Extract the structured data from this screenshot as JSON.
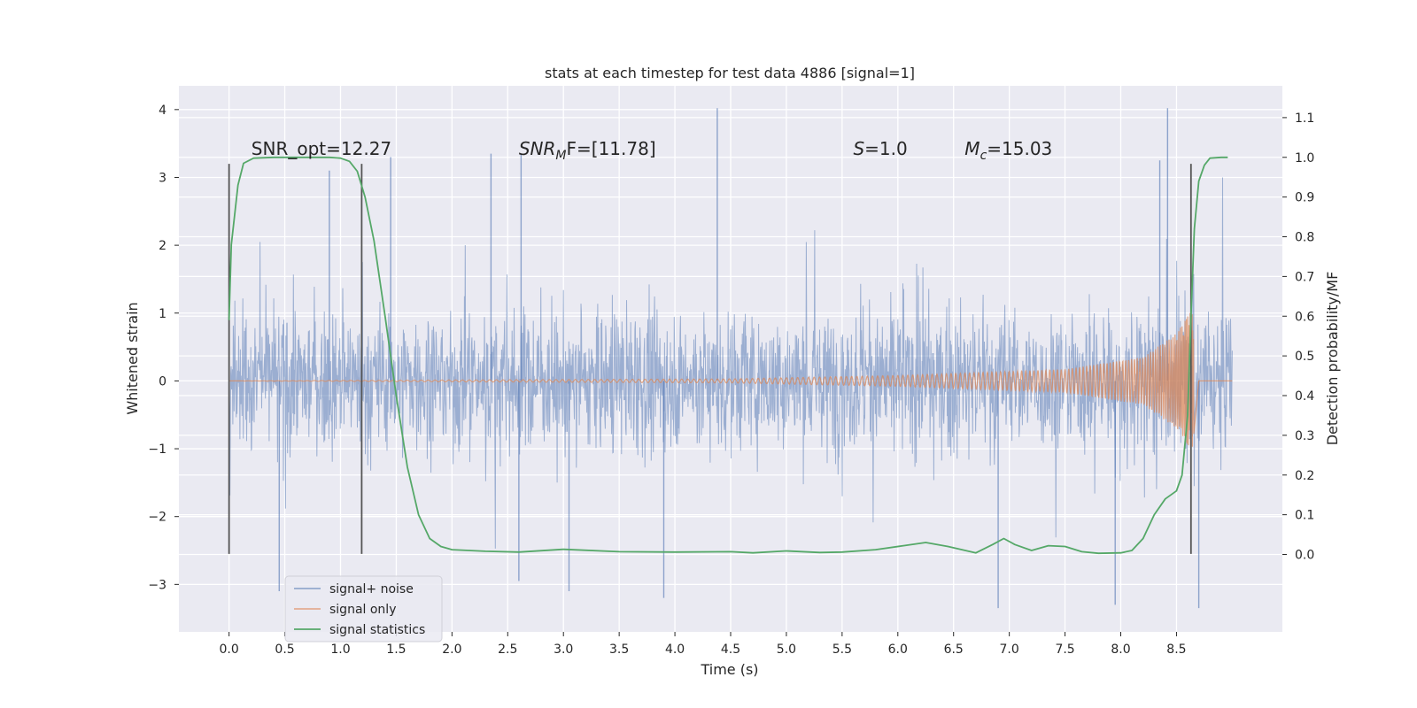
{
  "chart_data": {
    "type": "line",
    "title": "stats at each timestep for test data 4886 [signal=1]",
    "xlabel": "Time (s)",
    "ylabel_left": "Whitened strain",
    "ylabel_right": "Detection probability/MF",
    "xlim": [
      -0.45,
      9.45
    ],
    "ylim_left": [
      -3.7,
      4.35
    ],
    "ylim_right": [
      -0.195,
      1.18
    ],
    "x_ticks": [
      "0.0",
      "0.5",
      "1.0",
      "1.5",
      "2.0",
      "2.5",
      "3.0",
      "3.5",
      "4.0",
      "4.5",
      "5.0",
      "5.5",
      "6.0",
      "6.5",
      "7.0",
      "7.5",
      "8.0",
      "8.5"
    ],
    "y_ticks_left": [
      "−3",
      "−2",
      "−1",
      "0",
      "1",
      "2",
      "3",
      "4"
    ],
    "y_ticks_right": [
      "0.0",
      "0.1",
      "0.2",
      "0.3",
      "0.4",
      "0.5",
      "0.6",
      "0.7",
      "0.8",
      "0.9",
      "1.0",
      "1.1"
    ],
    "grid": true,
    "background": "#eaeaf2",
    "legend_position": "lower-left",
    "series": [
      {
        "name": "signal+ noise",
        "axis": "left",
        "color": "#4c72b0",
        "x_range": [
          0.0,
          9.0
        ],
        "typical_range": [
          -1.5,
          1.5
        ],
        "peaks": [
          {
            "x": 4.38,
            "y": 4.02
          },
          {
            "x": 8.42,
            "y": 4.02
          },
          {
            "x": 0.9,
            "y": 3.1
          },
          {
            "x": 1.45,
            "y": 3.3
          },
          {
            "x": 2.35,
            "y": 3.35
          },
          {
            "x": 2.62,
            "y": 3.35
          },
          {
            "x": 8.35,
            "y": 3.25
          },
          {
            "x": 6.9,
            "y": -3.35
          },
          {
            "x": 8.7,
            "y": -3.35
          },
          {
            "x": 3.9,
            "y": -3.2
          },
          {
            "x": 7.95,
            "y": -3.3
          },
          {
            "x": 0.45,
            "y": -3.1
          },
          {
            "x": 2.6,
            "y": -2.95
          },
          {
            "x": 3.05,
            "y": -3.1
          }
        ]
      },
      {
        "name": "signal only",
        "axis": "left",
        "color": "#dd8452",
        "description_points": [
          {
            "x": 0.0,
            "amp": 0.0
          },
          {
            "x": 4.5,
            "amp": 0.03
          },
          {
            "x": 6.0,
            "amp": 0.08
          },
          {
            "x": 7.5,
            "amp": 0.17
          },
          {
            "x": 8.2,
            "amp": 0.35
          },
          {
            "x": 8.5,
            "amp": 0.7
          },
          {
            "x": 8.64,
            "amp": 1.05
          },
          {
            "x": 8.7,
            "amp": 0.0
          },
          {
            "x": 9.0,
            "amp": 0.0
          }
        ]
      },
      {
        "name": "signal statistics",
        "axis": "right",
        "color": "#55a868",
        "x": [
          0.0,
          0.02,
          0.08,
          0.13,
          0.22,
          0.4,
          0.7,
          0.9,
          1.0,
          1.08,
          1.15,
          1.22,
          1.3,
          1.4,
          1.5,
          1.6,
          1.7,
          1.8,
          1.9,
          2.0,
          2.3,
          2.6,
          3.0,
          3.5,
          4.0,
          4.5,
          4.7,
          5.0,
          5.3,
          5.5,
          5.8,
          6.05,
          6.25,
          6.45,
          6.7,
          6.85,
          6.95,
          7.05,
          7.2,
          7.35,
          7.5,
          7.65,
          7.8,
          8.0,
          8.1,
          8.2,
          8.3,
          8.4,
          8.5,
          8.55,
          8.6,
          8.63,
          8.66,
          8.7,
          8.75,
          8.8,
          8.9,
          8.96
        ],
        "values": [
          0.59,
          0.78,
          0.93,
          0.985,
          0.998,
          1.0,
          1.0,
          1.0,
          0.998,
          0.99,
          0.965,
          0.9,
          0.79,
          0.6,
          0.4,
          0.22,
          0.1,
          0.04,
          0.02,
          0.012,
          0.008,
          0.006,
          0.013,
          0.007,
          0.006,
          0.007,
          0.004,
          0.009,
          0.005,
          0.006,
          0.012,
          0.022,
          0.03,
          0.02,
          0.004,
          0.025,
          0.04,
          0.025,
          0.01,
          0.022,
          0.02,
          0.007,
          0.003,
          0.004,
          0.01,
          0.04,
          0.1,
          0.14,
          0.16,
          0.2,
          0.35,
          0.6,
          0.82,
          0.94,
          0.98,
          0.998,
          1.0,
          1.0
        ]
      }
    ],
    "vertical_markers": [
      {
        "x": 0.0,
        "y_range": [
          -2.55,
          3.2
        ],
        "color": "#555555"
      },
      {
        "x": 1.19,
        "y_range": [
          -2.55,
          3.2
        ],
        "color": "#555555"
      },
      {
        "x": 8.63,
        "y_range": [
          -2.55,
          3.2
        ],
        "color": "#555555"
      }
    ],
    "annotations": [
      {
        "text": "SNR_opt=12.27",
        "x": 0.2,
        "y": 3.33
      },
      {
        "text_main": "SNR",
        "text_sub": "M",
        "text_rest": "F=[11.78]",
        "x": 2.6,
        "y": 3.33,
        "italic_main": true
      },
      {
        "text_main": "S",
        "text_sub": "",
        "text_rest": "=1.0",
        "x": 5.6,
        "y": 3.33,
        "italic_main": true
      },
      {
        "text_main": "M",
        "text_sub": "c",
        "text_rest": "=15.03",
        "x": 6.6,
        "y": 3.33,
        "italic_main": true
      }
    ]
  }
}
